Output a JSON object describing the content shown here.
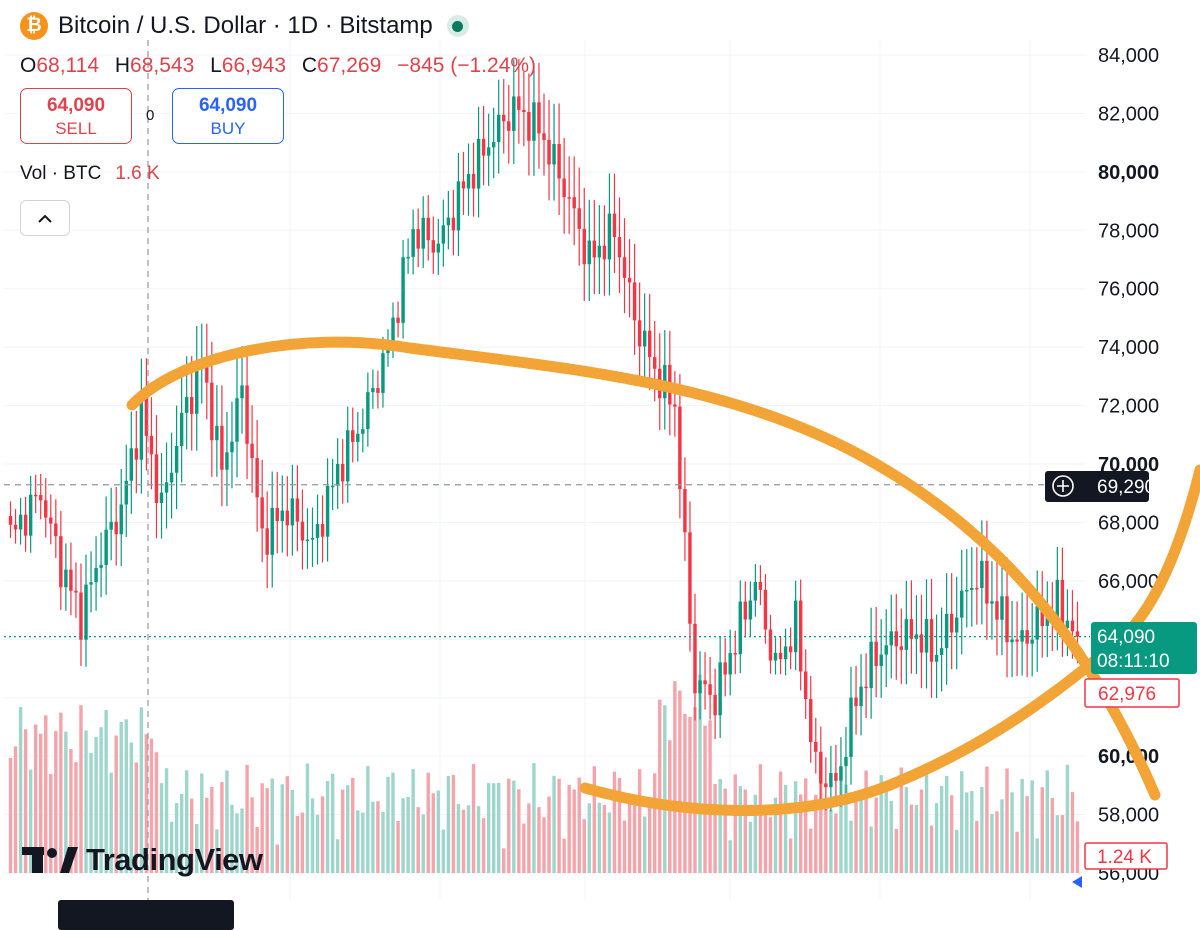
{
  "header": {
    "coin_symbol": "₿",
    "title": "Bitcoin / U.S. Dollar · 1D · Bitstamp"
  },
  "ohlc": {
    "o_label": "O",
    "o": "68,114",
    "h_label": "H",
    "h": "68,543",
    "l_label": "L",
    "l": "66,943",
    "c_label": "C",
    "c": "67,269",
    "change": "−845 (−1.24%)"
  },
  "trade": {
    "sell_price": "64,090",
    "sell_label": "SELL",
    "spread": "0",
    "buy_price": "64,090",
    "buy_label": "BUY"
  },
  "volume_legend": {
    "label": "Vol · BTC",
    "value": "1.6 K"
  },
  "collapse_icon": "^",
  "brand": "TradingView",
  "colors": {
    "up": "#089981",
    "down": "#f23645",
    "up_volume": "#9fd6cc",
    "down_volume": "#f3a5ab",
    "annotation": "#f2a436",
    "text": "#131722"
  },
  "chart_data": {
    "type": "candlestick",
    "instrument": "Bitcoin / U.S. Dollar",
    "interval": "1D",
    "exchange": "Bitstamp",
    "ylim": [
      55500,
      85500
    ],
    "y_ticks": [
      "84,000",
      "82,000",
      "80,000",
      "78,000",
      "76,000",
      "74,000",
      "72,000",
      "70,000",
      "68,000",
      "66,000",
      "64,000",
      "62,000",
      "60,000",
      "58,000",
      "56,000"
    ],
    "bold_ticks": [
      "80,000",
      "70,000",
      "60,000"
    ],
    "grid": true,
    "crosshair_price": "69,290",
    "last_price": "64,090",
    "countdown": "08:11:10",
    "marked_price": "62,976",
    "volume_last": "1.24 K",
    "price_anchors": [
      [
        0,
        67500
      ],
      [
        6,
        69000
      ],
      [
        10,
        66500
      ],
      [
        14,
        64800
      ],
      [
        18,
        67000
      ],
      [
        22,
        68500
      ],
      [
        26,
        71800
      ],
      [
        30,
        68500
      ],
      [
        34,
        71500
      ],
      [
        38,
        73400
      ],
      [
        42,
        69800
      ],
      [
        46,
        72500
      ],
      [
        50,
        67500
      ],
      [
        55,
        68500
      ],
      [
        60,
        67200
      ],
      [
        65,
        69800
      ],
      [
        70,
        71500
      ],
      [
        75,
        74000
      ],
      [
        80,
        78000
      ],
      [
        85,
        77500
      ],
      [
        90,
        79500
      ],
      [
        95,
        81000
      ],
      [
        100,
        82200
      ],
      [
        105,
        81500
      ],
      [
        110,
        79500
      ],
      [
        115,
        77000
      ],
      [
        120,
        78000
      ],
      [
        124,
        75000
      ],
      [
        128,
        73200
      ],
      [
        132,
        72000
      ],
      [
        134,
        67000
      ],
      [
        136,
        62500
      ],
      [
        140,
        62000
      ],
      [
        144,
        64000
      ],
      [
        148,
        66000
      ],
      [
        152,
        63000
      ],
      [
        156,
        64500
      ],
      [
        160,
        59500
      ],
      [
        164,
        59000
      ],
      [
        168,
        62000
      ],
      [
        172,
        63500
      ],
      [
        176,
        64000
      ],
      [
        180,
        64200
      ],
      [
        184,
        63500
      ],
      [
        188,
        65000
      ],
      [
        192,
        66200
      ],
      [
        196,
        65000
      ],
      [
        200,
        63800
      ],
      [
        204,
        64500
      ],
      [
        208,
        65200
      ],
      [
        212,
        64090
      ]
    ]
  }
}
